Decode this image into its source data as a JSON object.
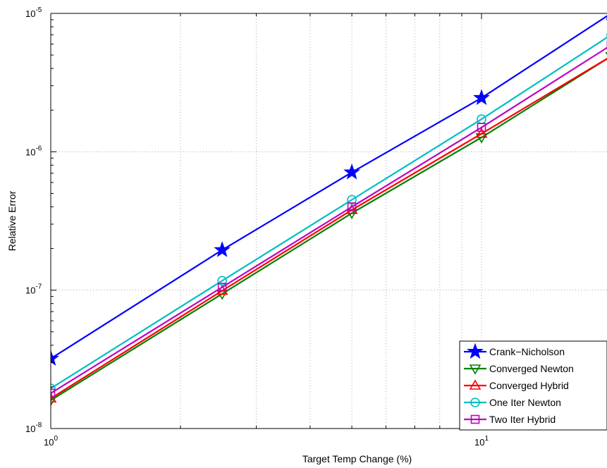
{
  "chart_data": {
    "type": "line",
    "xscale": "log",
    "yscale": "log",
    "xlabel": "Target Temp Change (%)",
    "ylabel": "Relative Error",
    "xlim": [
      1,
      18
    ],
    "ylim": [
      1e-08,
      1e-05
    ],
    "x_ticks": [
      {
        "value": 1,
        "base": "10",
        "exp": "0"
      },
      {
        "value": 10,
        "base": "10",
        "exp": "1"
      }
    ],
    "y_ticks": [
      {
        "value": 1e-08,
        "base": "10",
        "exp": "-8"
      },
      {
        "value": 1e-07,
        "base": "10",
        "exp": "-7"
      },
      {
        "value": 1e-06,
        "base": "10",
        "exp": "-6"
      },
      {
        "value": 1e-05,
        "base": "10",
        "exp": "-5"
      }
    ],
    "grid": true,
    "legend_position": "bottom-right",
    "series": [
      {
        "name": "Crank−Nicholson",
        "color": "#0000ff",
        "marker": "star",
        "x": [
          1,
          2.5,
          5,
          10,
          20
        ],
        "y": [
          3.2e-08,
          1.95e-07,
          7.1e-07,
          2.45e-06,
          1e-05
        ]
      },
      {
        "name": "Converged Newton",
        "color": "#008000",
        "marker": "triangle-down",
        "x": [
          1,
          2.5,
          5,
          10,
          20
        ],
        "y": [
          1.6e-08,
          9.4e-08,
          3.6e-07,
          1.27e-06,
          4.9e-06
        ]
      },
      {
        "name": "Converged Hybrid",
        "color": "#ff0000",
        "marker": "triangle-up",
        "x": [
          1,
          2.5,
          5,
          10,
          20
        ],
        "y": [
          1.65e-08,
          9.9e-08,
          3.8e-07,
          1.35e-06,
          4.9e-06
        ]
      },
      {
        "name": "One Iter Newton",
        "color": "#00bfbf",
        "marker": "circle",
        "x": [
          1,
          2.5,
          5,
          10,
          20
        ],
        "y": [
          1.95e-08,
          1.17e-07,
          4.5e-07,
          1.72e-06,
          7e-06
        ]
      },
      {
        "name": "Two Iter Hybrid",
        "color": "#bf00bf",
        "marker": "square",
        "x": [
          1,
          2.5,
          5,
          10,
          20
        ],
        "y": [
          1.8e-08,
          1.05e-07,
          4e-07,
          1.5e-06,
          5.9e-06
        ]
      }
    ]
  }
}
